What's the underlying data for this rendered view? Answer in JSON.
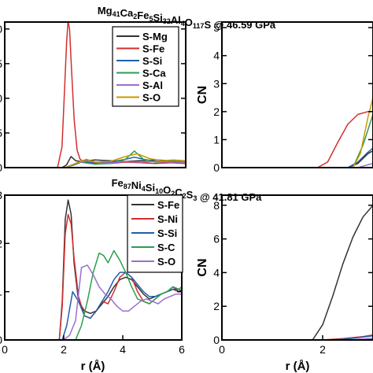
{
  "figure": {
    "titles": [
      {
        "main": "Mg",
        "parts": [
          [
            "Mg",
            "41"
          ],
          [
            "Ca",
            "2"
          ],
          [
            "Fe",
            "5"
          ],
          [
            "Si",
            "32"
          ],
          [
            "Al",
            "4"
          ],
          [
            "O",
            "117"
          ],
          [
            "S",
            ""
          ]
        ],
        "suffix": " @ 46.59 GPa"
      },
      {
        "main": "Fe",
        "parts": [
          [
            "Fe",
            "87"
          ],
          [
            "Ni",
            "4"
          ],
          [
            "Si",
            "10"
          ],
          [
            "O",
            "2"
          ],
          [
            "C",
            "2"
          ],
          [
            "S",
            "3"
          ]
        ],
        "suffix": " @ 41.81 GPa"
      }
    ],
    "xlabel": "r (Å)",
    "cn_label": "CN"
  },
  "chart_data": [
    {
      "type": "line",
      "panel": "top-left",
      "xlim": [
        0,
        6
      ],
      "ylim": [
        0,
        21
      ],
      "yticks": [
        {
          "v": 0,
          "t": "0"
        },
        {
          "v": 5,
          "t": "5"
        },
        {
          "v": 10,
          "t": "0"
        },
        {
          "v": 15,
          "t": "5"
        },
        {
          "v": 20,
          "t": "20"
        }
      ],
      "xticks": [],
      "legend": "top-right",
      "series": [
        {
          "name": "S-Mg",
          "color": "#333333",
          "x": [
            0,
            1.9,
            2.05,
            2.2,
            2.35,
            2.5,
            3.0,
            3.5,
            4.0,
            4.5,
            5.0,
            5.5,
            6.0
          ],
          "y": [
            0,
            0,
            0.4,
            1.6,
            1.0,
            0.9,
            1.1,
            1.0,
            0.9,
            1.0,
            1.1,
            1.0,
            1.0
          ]
        },
        {
          "name": "S-Fe",
          "color": "#d32f2f",
          "x": [
            0,
            1.75,
            1.9,
            2.0,
            2.05,
            2.1,
            2.15,
            2.2,
            2.3,
            2.4,
            2.5,
            2.6,
            2.8,
            3.0,
            3.5,
            4.0,
            4.5,
            5.0,
            5.5,
            6.0
          ],
          "y": [
            0,
            0,
            3,
            13,
            18,
            21.2,
            20,
            15.5,
            7,
            2.5,
            1.2,
            0.9,
            0.8,
            0.7,
            0.6,
            0.8,
            0.7,
            0.6,
            0.7,
            0.6
          ]
        },
        {
          "name": "S-Si",
          "color": "#1f5fa8",
          "x": [
            0,
            2.0,
            2.3,
            2.6,
            3.0,
            3.5,
            4.0,
            4.3,
            4.6,
            5.0,
            5.5,
            6.0
          ],
          "y": [
            0,
            0,
            0.4,
            0.9,
            0.6,
            0.8,
            1.2,
            1.5,
            1.2,
            0.9,
            1.0,
            0.9
          ]
        },
        {
          "name": "S-Ca",
          "color": "#2e9e4f",
          "x": [
            0,
            2.0,
            2.5,
            3.0,
            3.5,
            4.0,
            4.3,
            4.6,
            5.0,
            5.5,
            6.0
          ],
          "y": [
            0,
            0,
            0.8,
            0.5,
            0.6,
            1.2,
            2.4,
            1.2,
            0.8,
            0.9,
            1.0
          ]
        },
        {
          "name": "S-Al",
          "color": "#9b6fd0",
          "x": [
            0,
            2.0,
            2.4,
            2.8,
            3.2,
            3.6,
            4.0,
            4.5,
            5.0,
            5.5,
            6.0
          ],
          "y": [
            0,
            0,
            0.7,
            1.0,
            0.6,
            0.7,
            0.9,
            0.8,
            0.9,
            0.8,
            0.8
          ]
        },
        {
          "name": "S-O",
          "color": "#c99a00",
          "x": [
            0,
            2.0,
            2.3,
            2.7,
            3.0,
            3.5,
            4.0,
            4.4,
            4.8,
            5.2,
            5.6,
            6.0
          ],
          "y": [
            0,
            0,
            0.5,
            1.2,
            0.8,
            0.9,
            1.6,
            2.0,
            1.3,
            1.0,
            1.1,
            1.0
          ]
        }
      ]
    },
    {
      "type": "line",
      "panel": "top-right",
      "xlim": [
        0,
        3
      ],
      "ylim": [
        0,
        5.2
      ],
      "yticks": [
        {
          "v": 0,
          "t": "0"
        },
        {
          "v": 1,
          "t": "1"
        },
        {
          "v": 2,
          "t": "2"
        },
        {
          "v": 3,
          "t": "3"
        },
        {
          "v": 4,
          "t": "4"
        },
        {
          "v": 5,
          "t": "5"
        }
      ],
      "xticks": [],
      "ylabel": "CN",
      "series": [
        {
          "name": "S-Mg",
          "color": "#333333",
          "x": [
            0,
            2.5,
            2.7,
            2.9,
            3.0
          ],
          "y": [
            0,
            0,
            0.15,
            0.5,
            0.6
          ]
        },
        {
          "name": "S-Fe",
          "color": "#d32f2f",
          "x": [
            0,
            1.9,
            2.1,
            2.3,
            2.5,
            2.7,
            2.9,
            3.0
          ],
          "y": [
            0,
            0,
            0.2,
            0.9,
            1.55,
            1.9,
            2.0,
            2.0
          ]
        },
        {
          "name": "S-Si",
          "color": "#1f5fa8",
          "x": [
            0,
            2.5,
            2.7,
            2.9,
            3.0
          ],
          "y": [
            0,
            0,
            0.2,
            0.55,
            0.7
          ]
        },
        {
          "name": "S-Ca",
          "color": "#2e9e4f",
          "x": [
            0,
            2.6,
            2.8,
            3.0
          ],
          "y": [
            0,
            0,
            0.8,
            1.9
          ]
        },
        {
          "name": "S-Al",
          "color": "#9b6fd0",
          "x": [
            0,
            2.7,
            2.9,
            3.0
          ],
          "y": [
            0,
            0,
            0.1,
            0.15
          ]
        },
        {
          "name": "S-O",
          "color": "#c99a00",
          "x": [
            0,
            2.6,
            2.75,
            2.9,
            3.0
          ],
          "y": [
            0,
            0,
            0.5,
            1.8,
            2.5
          ]
        }
      ]
    },
    {
      "type": "line",
      "panel": "bottom-left",
      "xlim": [
        0,
        6
      ],
      "ylim": [
        0,
        3
      ],
      "yticks": [
        {
          "v": 0,
          "t": "0"
        },
        {
          "v": 1,
          "t": "1"
        },
        {
          "v": 2,
          "t": "2"
        },
        {
          "v": 3,
          "t": "3"
        }
      ],
      "xticks": [
        {
          "v": 0,
          "t": "0"
        },
        {
          "v": 2,
          "t": "2"
        },
        {
          "v": 4,
          "t": "4"
        },
        {
          "v": 6,
          "t": "6"
        }
      ],
      "legend": "top-right",
      "series": [
        {
          "name": "S-Fe",
          "color": "#333333",
          "x": [
            0,
            1.85,
            1.95,
            2.05,
            2.15,
            2.25,
            2.35,
            2.5,
            2.7,
            2.9,
            3.1,
            3.3,
            3.5,
            3.7,
            3.9,
            4.1,
            4.3,
            4.5,
            4.7,
            4.9,
            5.1,
            5.3,
            5.5,
            5.7,
            5.9,
            6.0
          ],
          "y": [
            0,
            0,
            0.8,
            2.5,
            2.9,
            2.6,
            1.6,
            0.8,
            0.6,
            0.55,
            0.6,
            0.75,
            0.9,
            1.1,
            1.25,
            1.3,
            1.25,
            1.1,
            0.95,
            0.85,
            0.9,
            0.95,
            1.0,
            1.05,
            1.0,
            1.0
          ]
        },
        {
          "name": "S-Ni",
          "color": "#d32f2f",
          "x": [
            0,
            1.85,
            1.95,
            2.05,
            2.15,
            2.25,
            2.35,
            2.5,
            2.7,
            2.9,
            3.1,
            3.3,
            3.5,
            3.7,
            3.9,
            4.1,
            4.3,
            4.5,
            4.7,
            4.9,
            5.1,
            5.3,
            5.5,
            5.7,
            5.9,
            6.0
          ],
          "y": [
            0,
            0,
            0.7,
            2.2,
            2.6,
            2.4,
            1.7,
            0.9,
            0.5,
            0.45,
            0.6,
            0.8,
            0.75,
            1.0,
            1.3,
            1.4,
            1.3,
            1.0,
            0.8,
            0.75,
            0.85,
            0.95,
            1.0,
            1.1,
            1.0,
            1.05
          ]
        },
        {
          "name": "S-Si",
          "color": "#1f5fa8",
          "x": [
            0,
            1.95,
            2.1,
            2.3,
            2.5,
            2.7,
            2.9,
            3.1,
            3.3,
            3.5,
            3.7,
            3.9,
            4.1,
            4.3,
            4.5,
            4.7,
            4.9,
            5.1,
            5.3,
            5.5,
            5.7,
            5.9,
            6.0
          ],
          "y": [
            0,
            0,
            0.3,
            1.0,
            0.8,
            0.5,
            0.45,
            0.6,
            0.8,
            1.0,
            1.25,
            1.4,
            1.4,
            1.3,
            1.15,
            1.0,
            0.9,
            0.9,
            0.95,
            1.0,
            1.05,
            1.05,
            1.0
          ]
        },
        {
          "name": "S-C",
          "color": "#2e9e4f",
          "x": [
            0,
            2.4,
            2.6,
            2.8,
            3.0,
            3.2,
            3.35,
            3.5,
            3.7,
            3.9,
            4.1,
            4.3,
            4.5,
            4.7,
            4.9,
            5.1,
            5.3,
            5.5,
            5.7,
            5.9,
            6.0
          ],
          "y": [
            0,
            0,
            0.3,
            0.8,
            1.4,
            1.8,
            1.75,
            1.6,
            1.85,
            1.65,
            1.4,
            1.1,
            0.85,
            0.8,
            0.75,
            0.85,
            0.95,
            1.0,
            1.1,
            1.05,
            1.1
          ]
        },
        {
          "name": "S-O",
          "color": "#9b6fd0",
          "x": [
            0,
            2.0,
            2.2,
            2.4,
            2.6,
            2.8,
            3.0,
            3.2,
            3.4,
            3.6,
            3.8,
            4.0,
            4.2,
            4.4,
            4.6,
            4.8,
            5.0,
            5.2,
            5.4,
            5.6,
            5.8,
            6.0
          ],
          "y": [
            0,
            0,
            0.1,
            0.4,
            1.5,
            1.55,
            1.35,
            1.1,
            0.95,
            0.85,
            0.7,
            0.6,
            0.6,
            0.7,
            0.8,
            0.85,
            0.8,
            0.75,
            0.85,
            0.9,
            0.95,
            0.95
          ]
        }
      ]
    },
    {
      "type": "line",
      "panel": "bottom-right",
      "xlim": [
        0,
        3
      ],
      "ylim": [
        0,
        8.6
      ],
      "yticks": [
        {
          "v": 0,
          "t": "0"
        },
        {
          "v": 2,
          "t": "2"
        },
        {
          "v": 4,
          "t": "4"
        },
        {
          "v": 6,
          "t": "6"
        },
        {
          "v": 8,
          "t": "8"
        }
      ],
      "xticks": [
        {
          "v": 0,
          "t": "0"
        },
        {
          "v": 2,
          "t": "2"
        }
      ],
      "ylabel": "CN",
      "series": [
        {
          "name": "S-Fe",
          "color": "#333333",
          "x": [
            0,
            1.8,
            2.0,
            2.2,
            2.4,
            2.6,
            2.8,
            3.0
          ],
          "y": [
            0,
            0,
            0.9,
            2.6,
            4.5,
            6.1,
            7.3,
            8.0
          ]
        },
        {
          "name": "S-Ni",
          "color": "#d32f2f",
          "x": [
            0,
            2.0,
            2.4,
            2.8,
            3.0
          ],
          "y": [
            0,
            0,
            0.08,
            0.2,
            0.3
          ]
        },
        {
          "name": "S-Si",
          "color": "#1f5fa8",
          "x": [
            0,
            2.2,
            2.6,
            3.0
          ],
          "y": [
            0,
            0,
            0.1,
            0.25
          ]
        },
        {
          "name": "S-C",
          "color": "#2e9e4f",
          "x": [
            0,
            2.8,
            3.0
          ],
          "y": [
            0,
            0,
            0.05
          ]
        },
        {
          "name": "S-O",
          "color": "#9b6fd0",
          "x": [
            0,
            2.5,
            2.8,
            3.0
          ],
          "y": [
            0,
            0,
            0.05,
            0.1
          ]
        }
      ]
    }
  ]
}
